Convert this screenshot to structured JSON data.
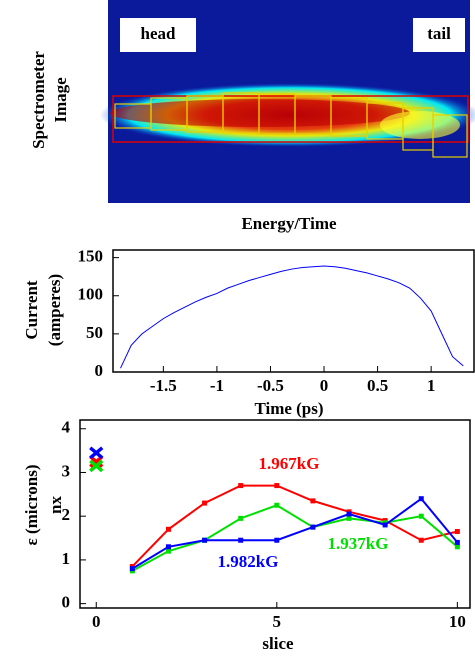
{
  "chart_data": [
    {
      "type": "image",
      "ylabel": [
        "Spectrometer",
        "Image"
      ],
      "xlabel": "Energy/Time",
      "annotations": [
        "head",
        "tail"
      ]
    },
    {
      "type": "line",
      "xlabel": "Time (ps)",
      "ylabel": [
        "Current",
        "(amperes)"
      ],
      "x": [
        -1.9,
        -1.8,
        -1.7,
        -1.6,
        -1.5,
        -1.4,
        -1.3,
        -1.2,
        -1.1,
        -1.0,
        -0.9,
        -0.8,
        -0.7,
        -0.6,
        -0.5,
        -0.4,
        -0.3,
        -0.2,
        -0.1,
        0,
        0.1,
        0.2,
        0.3,
        0.4,
        0.5,
        0.6,
        0.7,
        0.8,
        0.9,
        1.0,
        1.1,
        1.2,
        1.3
      ],
      "series": [
        {
          "color": "#0000ff",
          "values": [
            5,
            35,
            50,
            60,
            70,
            78,
            85,
            92,
            98,
            103,
            110,
            115,
            120,
            124,
            128,
            132,
            135,
            137,
            138,
            139,
            138,
            136,
            133,
            130,
            126,
            122,
            117,
            110,
            97,
            80,
            50,
            20,
            8
          ]
        }
      ],
      "xlim": [
        -1.97,
        1.4
      ],
      "ylim": [
        0,
        160
      ],
      "xticks": [
        -1.5,
        -1,
        -0.5,
        0,
        0.5,
        1
      ],
      "yticks": [
        0,
        50,
        100,
        150
      ]
    },
    {
      "type": "line",
      "xlabel": "slice",
      "ylabel": [
        "ε  (microns)",
        "nx"
      ],
      "x": [
        1,
        2,
        3,
        4,
        5,
        6,
        7,
        8,
        9,
        10
      ],
      "cross_x": 0,
      "series": [
        {
          "name": "1.967kG",
          "color": "#ff0000",
          "values": [
            0.85,
            1.7,
            2.3,
            2.7,
            2.7,
            2.35,
            2.1,
            1.9,
            1.45,
            1.65
          ],
          "cross": 3.25
        },
        {
          "name": "1.937kG",
          "color": "#00e000",
          "values": [
            0.75,
            1.2,
            1.45,
            1.95,
            2.25,
            1.75,
            1.95,
            1.85,
            2.0,
            1.3
          ],
          "cross": 3.15
        },
        {
          "name": "1.982kG",
          "color": "#0000ff",
          "values": [
            0.8,
            1.3,
            1.45,
            1.45,
            1.45,
            1.75,
            2.05,
            1.8,
            2.4,
            1.4
          ],
          "cross": 3.45
        }
      ],
      "xlim": [
        -0.45,
        10.35
      ],
      "ylim": [
        -0.1,
        4.2
      ],
      "xticks": [
        0,
        5,
        10
      ],
      "yticks": [
        0,
        1,
        2,
        3,
        4
      ]
    }
  ]
}
